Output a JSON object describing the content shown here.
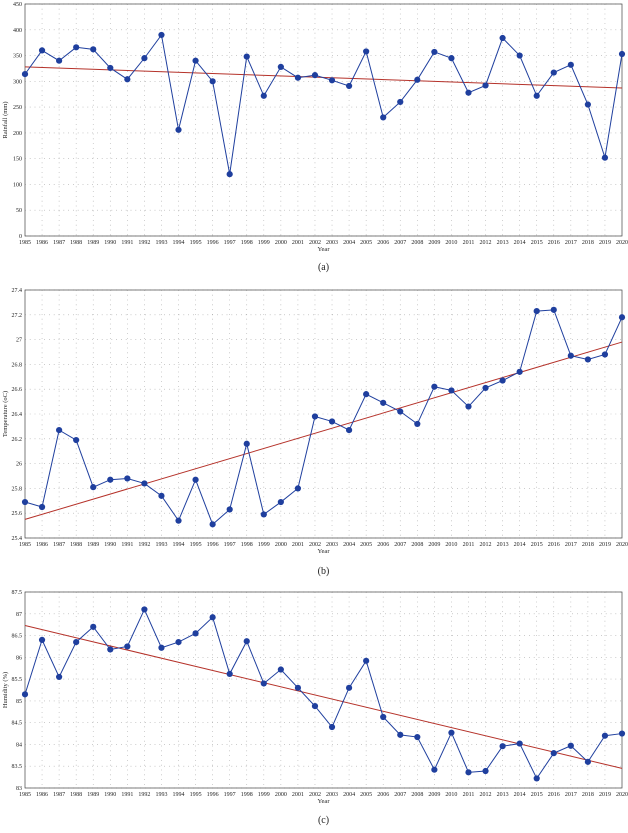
{
  "chart_data": [
    {
      "type": "line",
      "caption": "(a)",
      "xlabel": "Year",
      "ylabel": "Rainfall (mm)",
      "ylim": [
        0,
        450
      ],
      "yticks": [
        0,
        50,
        100,
        150,
        200,
        250,
        300,
        350,
        400,
        450
      ],
      "grid": "dotted",
      "x": [
        1985,
        1986,
        1987,
        1988,
        1989,
        1990,
        1991,
        1992,
        1993,
        1994,
        1995,
        1996,
        1997,
        1998,
        1999,
        2000,
        2001,
        2002,
        2003,
        2004,
        2005,
        2006,
        2007,
        2008,
        2009,
        2010,
        2011,
        2012,
        2013,
        2014,
        2015,
        2016,
        2017,
        2018,
        2019,
        2020
      ],
      "series": [
        {
          "values": [
            314,
            360,
            340,
            366,
            362,
            326,
            304,
            345,
            390,
            206,
            340,
            300,
            120,
            348,
            272,
            328,
            307,
            312,
            302,
            291,
            358,
            230,
            260,
            303,
            357,
            345,
            278,
            292,
            384,
            350,
            272,
            317,
            332,
            255,
            152,
            353
          ],
          "color": "#1f3f9e"
        }
      ],
      "trend": {
        "start": 328,
        "end": 287,
        "color": "#b5322a"
      }
    },
    {
      "type": "line",
      "caption": "(b)",
      "xlabel": "Year",
      "ylabel": "Temperature (oC)",
      "ylim": [
        25.4,
        27.4
      ],
      "yticks": [
        25.4,
        25.6,
        25.8,
        26,
        26.2,
        26.4,
        26.6,
        26.8,
        27,
        27.2,
        27.4
      ],
      "grid": "dotted",
      "x": [
        1985,
        1986,
        1987,
        1988,
        1989,
        1990,
        1991,
        1992,
        1993,
        1994,
        1995,
        1996,
        1997,
        1998,
        1999,
        2000,
        2001,
        2002,
        2003,
        2004,
        2005,
        2006,
        2007,
        2008,
        2009,
        2010,
        2011,
        2012,
        2013,
        2014,
        2015,
        2016,
        2017,
        2018,
        2019,
        2020
      ],
      "series": [
        {
          "values": [
            25.69,
            25.65,
            26.27,
            26.19,
            25.81,
            25.87,
            25.88,
            25.84,
            25.74,
            25.54,
            25.87,
            25.51,
            25.63,
            26.16,
            25.59,
            25.69,
            25.8,
            26.38,
            26.34,
            26.27,
            26.56,
            26.49,
            26.42,
            26.32,
            26.62,
            26.59,
            26.46,
            26.61,
            26.67,
            26.74,
            27.23,
            27.24,
            26.87,
            26.84,
            26.88,
            27.18
          ],
          "color": "#1f3f9e"
        }
      ],
      "trend": {
        "start": 25.55,
        "end": 26.98,
        "color": "#b5322a"
      }
    },
    {
      "type": "line",
      "caption": "(c)",
      "xlabel": "Year",
      "ylabel": "Humidity (%)",
      "ylim": [
        83,
        87.5
      ],
      "yticks": [
        83,
        83.5,
        84,
        84.5,
        85,
        85.5,
        86,
        86.5,
        87,
        87.5
      ],
      "grid": "dotted",
      "x": [
        1985,
        1986,
        1987,
        1988,
        1989,
        1990,
        1991,
        1992,
        1993,
        1994,
        1995,
        1996,
        1997,
        1998,
        1999,
        2000,
        2001,
        2002,
        2003,
        2004,
        2005,
        2006,
        2007,
        2008,
        2009,
        2010,
        2011,
        2012,
        2013,
        2014,
        2015,
        2016,
        2017,
        2018,
        2019,
        2020
      ],
      "series": [
        {
          "values": [
            85.15,
            86.4,
            85.55,
            86.35,
            86.7,
            86.18,
            86.25,
            87.1,
            86.22,
            86.35,
            86.55,
            86.92,
            85.62,
            86.37,
            85.4,
            85.72,
            85.3,
            84.88,
            84.4,
            85.3,
            85.92,
            84.63,
            84.22,
            84.17,
            83.42,
            84.27,
            83.36,
            83.39,
            83.96,
            84.02,
            83.22,
            83.8,
            83.97,
            83.6,
            84.2,
            84.25
          ],
          "color": "#1f3f9e"
        }
      ],
      "trend": {
        "start": 86.73,
        "end": 83.45,
        "color": "#b5322a"
      }
    }
  ]
}
